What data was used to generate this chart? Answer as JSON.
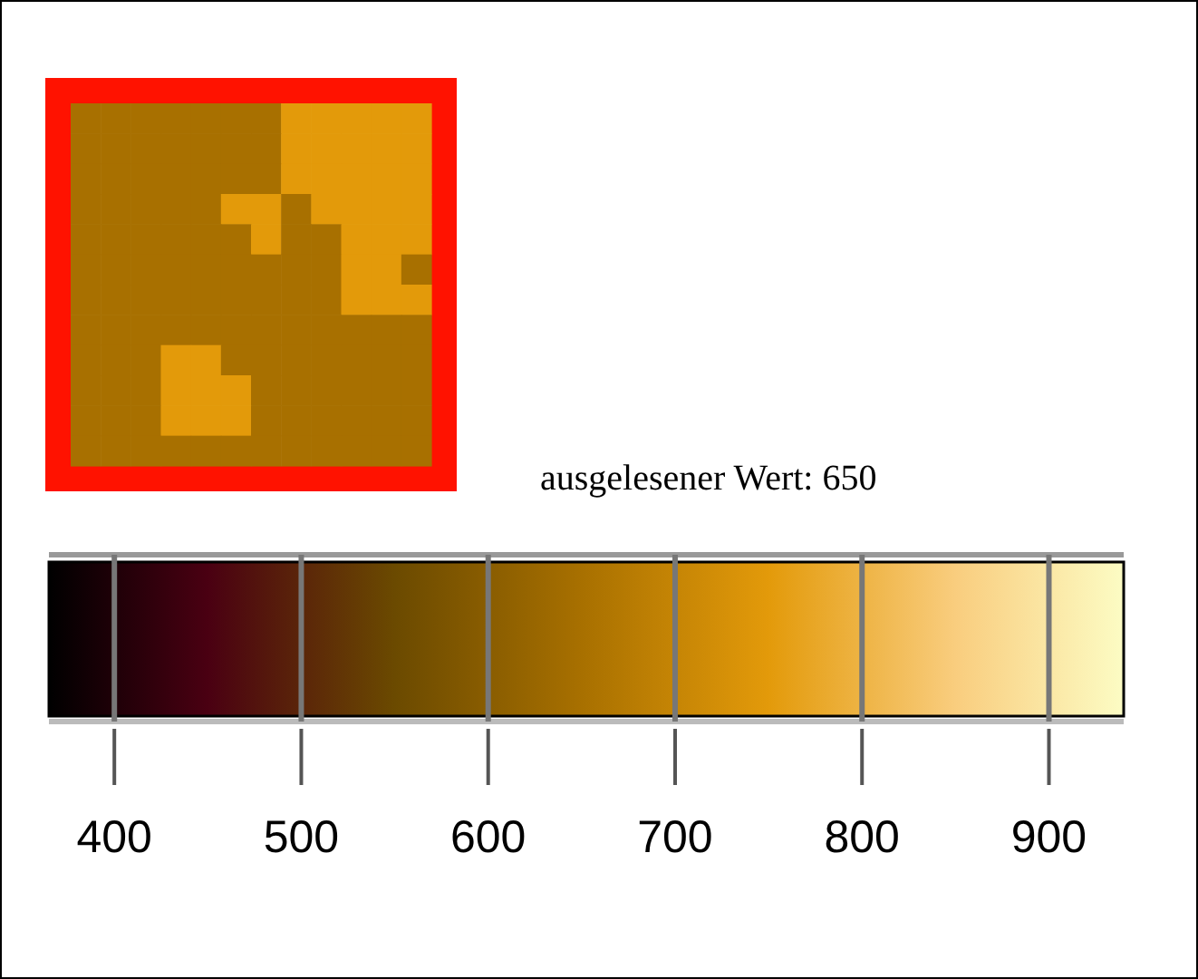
{
  "chart_data": {
    "type": "heatmap",
    "annotations": [
      "ausgelesener Wert: 650"
    ],
    "categories": [
      null,
      null,
      null,
      null,
      null,
      null,
      null,
      null,
      null,
      null,
      null,
      null
    ],
    "y_categories": [
      null,
      null,
      null,
      null,
      null,
      null,
      null,
      null,
      null,
      null,
      null,
      null
    ],
    "cells": [
      [
        650,
        650,
        650,
        650,
        650,
        650,
        650,
        750,
        750,
        750,
        750,
        750
      ],
      [
        650,
        650,
        650,
        650,
        650,
        650,
        650,
        750,
        750,
        750,
        750,
        750
      ],
      [
        650,
        650,
        650,
        650,
        650,
        650,
        650,
        750,
        750,
        750,
        750,
        750
      ],
      [
        650,
        650,
        650,
        650,
        650,
        750,
        750,
        650,
        750,
        750,
        750,
        750
      ],
      [
        650,
        650,
        650,
        650,
        650,
        650,
        750,
        650,
        650,
        750,
        750,
        750
      ],
      [
        650,
        650,
        650,
        650,
        650,
        650,
        650,
        650,
        650,
        750,
        750,
        650
      ],
      [
        650,
        650,
        650,
        650,
        650,
        650,
        650,
        650,
        650,
        750,
        750,
        750
      ],
      [
        650,
        650,
        650,
        650,
        650,
        650,
        650,
        650,
        650,
        650,
        650,
        650
      ],
      [
        650,
        650,
        650,
        750,
        750,
        650,
        650,
        650,
        650,
        650,
        650,
        650
      ],
      [
        650,
        650,
        650,
        750,
        750,
        750,
        650,
        650,
        650,
        650,
        650,
        650
      ],
      [
        650,
        650,
        650,
        750,
        750,
        750,
        650,
        650,
        650,
        650,
        650,
        650
      ],
      [
        650,
        650,
        650,
        650,
        650,
        650,
        650,
        650,
        650,
        650,
        650,
        650
      ]
    ],
    "clim": [
      365,
      940
    ],
    "cticks": [
      400,
      500,
      600,
      700,
      800,
      900
    ],
    "colors": [
      "#000000",
      "#4a0012",
      "#6b4a00",
      "#a87000",
      "#e39a0a",
      "#f9cd7e",
      "#fcfcc4"
    ]
  }
}
